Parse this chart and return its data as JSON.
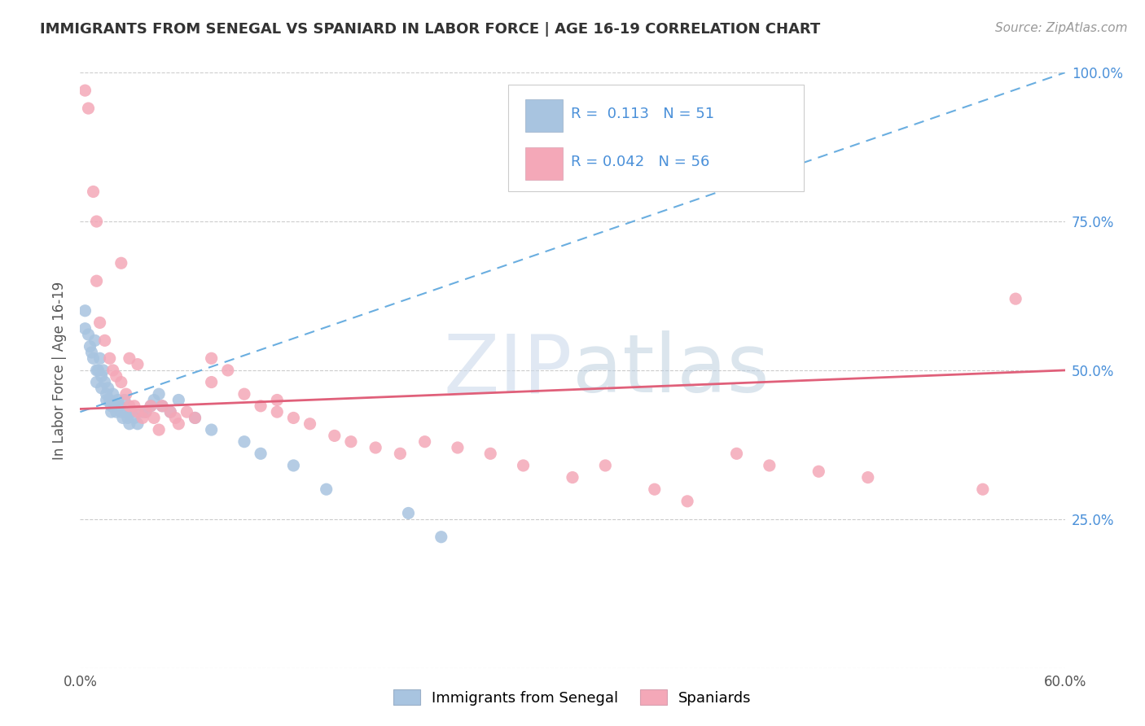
{
  "title": "IMMIGRANTS FROM SENEGAL VS SPANIARD IN LABOR FORCE | AGE 16-19 CORRELATION CHART",
  "source": "Source: ZipAtlas.com",
  "ylabel": "In Labor Force | Age 16-19",
  "xlim": [
    0.0,
    0.6
  ],
  "ylim": [
    0.0,
    1.0
  ],
  "ytick_values": [
    0.0,
    0.25,
    0.5,
    0.75,
    1.0
  ],
  "ytick_labels_right": [
    "",
    "25.0%",
    "50.0%",
    "75.0%",
    "100.0%"
  ],
  "xtick_values": [
    0.0,
    0.1,
    0.2,
    0.3,
    0.4,
    0.5,
    0.6
  ],
  "xtick_labels": [
    "0.0%",
    "",
    "",
    "",
    "",
    "",
    "60.0%"
  ],
  "legend1_label": "Immigrants from Senegal",
  "legend2_label": "Spaniards",
  "R1": 0.113,
  "N1": 51,
  "R2": 0.042,
  "N2": 56,
  "color1": "#a8c4e0",
  "color2": "#f4a8b8",
  "trendline1_color": "#6aaee0",
  "trendline2_color": "#e0607a",
  "watermark_color": "#ccdaeb",
  "blue_x": [
    0.003,
    0.003,
    0.005,
    0.006,
    0.007,
    0.008,
    0.009,
    0.01,
    0.01,
    0.011,
    0.012,
    0.013,
    0.013,
    0.014,
    0.015,
    0.016,
    0.016,
    0.017,
    0.018,
    0.019,
    0.019,
    0.02,
    0.021,
    0.022,
    0.023,
    0.024,
    0.025,
    0.026,
    0.027,
    0.028,
    0.029,
    0.03,
    0.031,
    0.033,
    0.035,
    0.038,
    0.04,
    0.043,
    0.045,
    0.048,
    0.05,
    0.055,
    0.06,
    0.07,
    0.08,
    0.1,
    0.11,
    0.13,
    0.15,
    0.2,
    0.22
  ],
  "blue_y": [
    0.6,
    0.57,
    0.56,
    0.54,
    0.53,
    0.52,
    0.55,
    0.5,
    0.48,
    0.5,
    0.52,
    0.49,
    0.47,
    0.5,
    0.48,
    0.46,
    0.45,
    0.47,
    0.45,
    0.44,
    0.43,
    0.46,
    0.44,
    0.43,
    0.45,
    0.44,
    0.43,
    0.42,
    0.45,
    0.43,
    0.42,
    0.41,
    0.43,
    0.42,
    0.41,
    0.43,
    0.43,
    0.44,
    0.45,
    0.46,
    0.44,
    0.43,
    0.45,
    0.42,
    0.4,
    0.38,
    0.36,
    0.34,
    0.3,
    0.26,
    0.22
  ],
  "pink_x": [
    0.003,
    0.005,
    0.008,
    0.01,
    0.012,
    0.015,
    0.018,
    0.02,
    0.022,
    0.025,
    0.028,
    0.03,
    0.033,
    0.035,
    0.038,
    0.04,
    0.043,
    0.045,
    0.048,
    0.05,
    0.055,
    0.058,
    0.06,
    0.065,
    0.07,
    0.08,
    0.09,
    0.1,
    0.11,
    0.12,
    0.13,
    0.14,
    0.155,
    0.165,
    0.18,
    0.195,
    0.21,
    0.23,
    0.25,
    0.27,
    0.3,
    0.32,
    0.35,
    0.37,
    0.4,
    0.42,
    0.45,
    0.48,
    0.55,
    0.57,
    0.01,
    0.025,
    0.03,
    0.035,
    0.08,
    0.12
  ],
  "pink_y": [
    0.97,
    0.94,
    0.8,
    0.65,
    0.58,
    0.55,
    0.52,
    0.5,
    0.49,
    0.48,
    0.46,
    0.44,
    0.44,
    0.43,
    0.42,
    0.43,
    0.44,
    0.42,
    0.4,
    0.44,
    0.43,
    0.42,
    0.41,
    0.43,
    0.42,
    0.52,
    0.5,
    0.46,
    0.44,
    0.43,
    0.42,
    0.41,
    0.39,
    0.38,
    0.37,
    0.36,
    0.38,
    0.37,
    0.36,
    0.34,
    0.32,
    0.34,
    0.3,
    0.28,
    0.36,
    0.34,
    0.33,
    0.32,
    0.3,
    0.62,
    0.75,
    0.68,
    0.52,
    0.51,
    0.48,
    0.45
  ],
  "trendline1_x0": 0.0,
  "trendline1_y0": 0.43,
  "trendline1_x1": 0.6,
  "trendline1_y1": 1.0,
  "trendline2_x0": 0.0,
  "trendline2_y0": 0.435,
  "trendline2_x1": 0.6,
  "trendline2_y1": 0.5
}
